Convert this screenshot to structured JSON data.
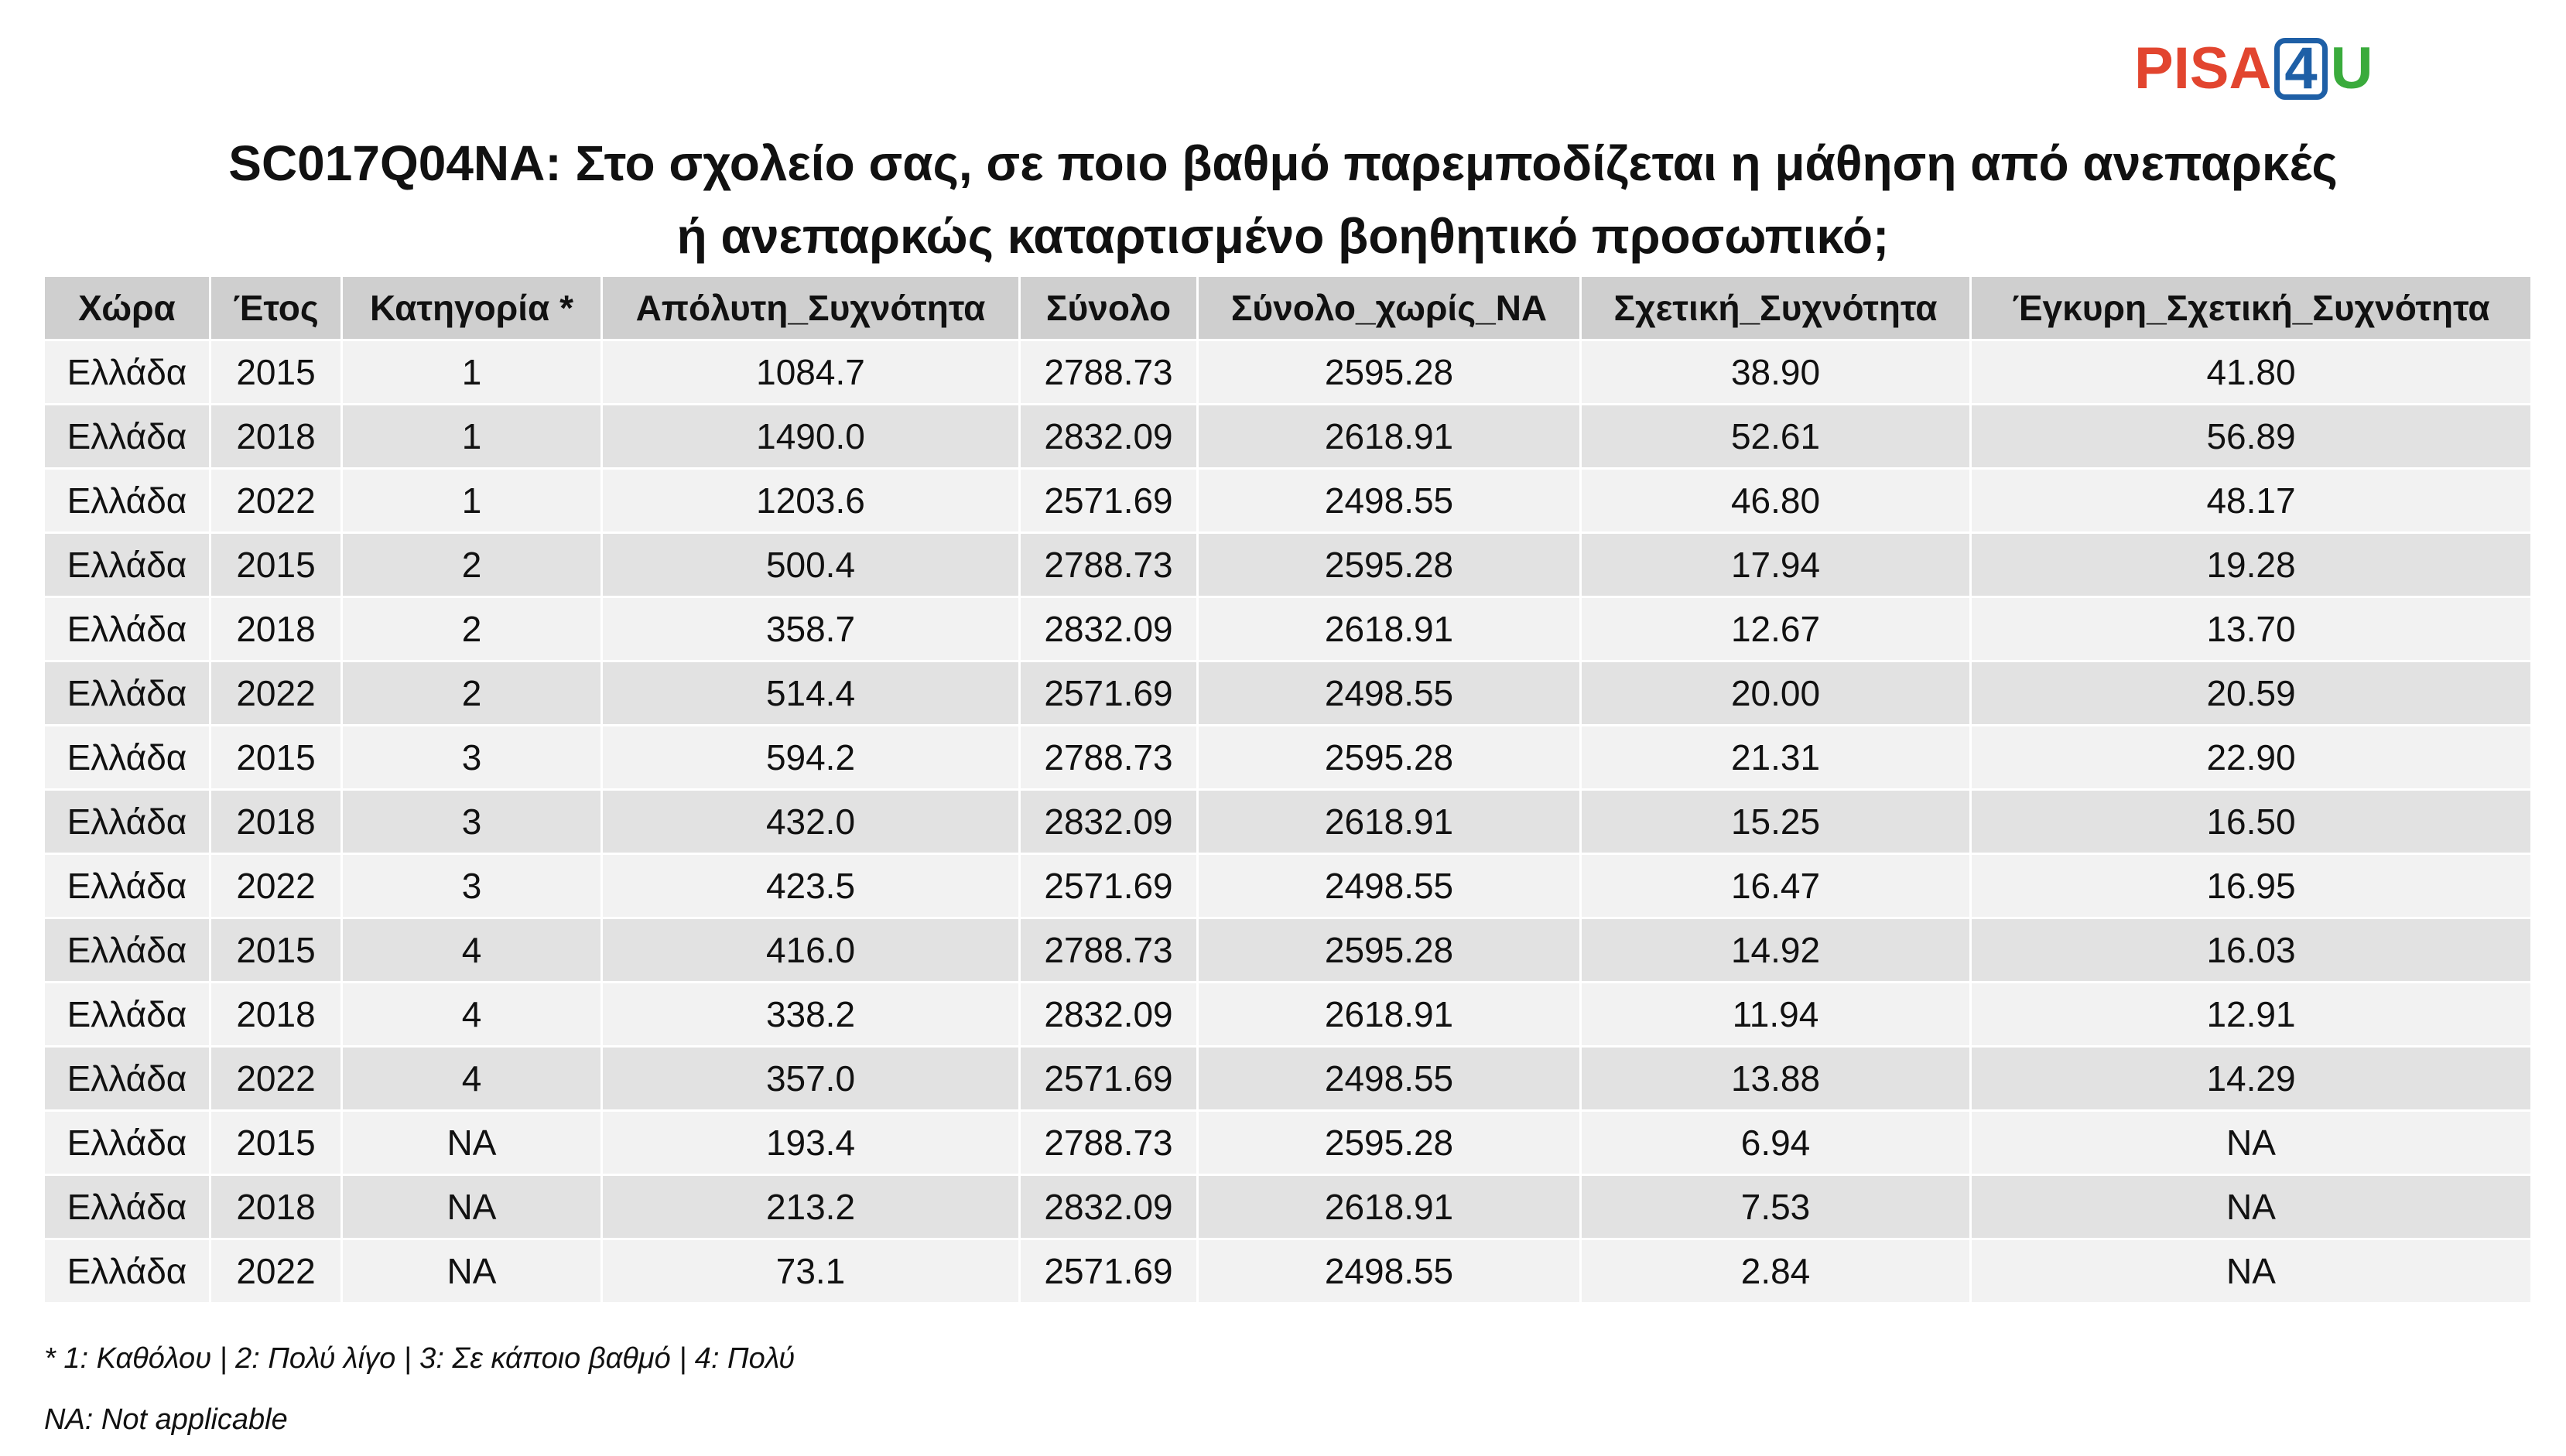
{
  "logo": [
    "PISA",
    "4",
    "U"
  ],
  "title": [
    "SC017Q04NA: Στο σχολείο σας, σε ποιο βαθμό παρεμποδίζεται η μάθηση από ανεπαρκές",
    "ή ανεπαρκώς καταρτισμένο βοηθητικό προσωπικό;"
  ],
  "table": {
    "header": [
      "Χώρα",
      "Έτος",
      "Κατηγορία *",
      "Απόλυτη_Συχνότητα",
      "Σύνολο",
      "Σύνολο_χωρίς_NA",
      "Σχετική_Συχνότητα",
      "Έγκυρη_Σχετική_Συχνότητα"
    ],
    "rows": [
      [
        "Ελλάδα",
        "2015",
        "1",
        "1084.7",
        "2788.73",
        "2595.28",
        "38.90",
        "41.80"
      ],
      [
        "Ελλάδα",
        "2018",
        "1",
        "1490.0",
        "2832.09",
        "2618.91",
        "52.61",
        "56.89"
      ],
      [
        "Ελλάδα",
        "2022",
        "1",
        "1203.6",
        "2571.69",
        "2498.55",
        "46.80",
        "48.17"
      ],
      [
        "Ελλάδα",
        "2015",
        "2",
        "500.4",
        "2788.73",
        "2595.28",
        "17.94",
        "19.28"
      ],
      [
        "Ελλάδα",
        "2018",
        "2",
        "358.7",
        "2832.09",
        "2618.91",
        "12.67",
        "13.70"
      ],
      [
        "Ελλάδα",
        "2022",
        "2",
        "514.4",
        "2571.69",
        "2498.55",
        "20.00",
        "20.59"
      ],
      [
        "Ελλάδα",
        "2015",
        "3",
        "594.2",
        "2788.73",
        "2595.28",
        "21.31",
        "22.90"
      ],
      [
        "Ελλάδα",
        "2018",
        "3",
        "432.0",
        "2832.09",
        "2618.91",
        "15.25",
        "16.50"
      ],
      [
        "Ελλάδα",
        "2022",
        "3",
        "423.5",
        "2571.69",
        "2498.55",
        "16.47",
        "16.95"
      ],
      [
        "Ελλάδα",
        "2015",
        "4",
        "416.0",
        "2788.73",
        "2595.28",
        "14.92",
        "16.03"
      ],
      [
        "Ελλάδα",
        "2018",
        "4",
        "338.2",
        "2832.09",
        "2618.91",
        "11.94",
        "12.91"
      ],
      [
        "Ελλάδα",
        "2022",
        "4",
        "357.0",
        "2571.69",
        "2498.55",
        "13.88",
        "14.29"
      ],
      [
        "Ελλάδα",
        "2015",
        "NA",
        "193.4",
        "2788.73",
        "2595.28",
        "6.94",
        "NA"
      ],
      [
        "Ελλάδα",
        "2018",
        "NA",
        "213.2",
        "2832.09",
        "2618.91",
        "7.53",
        "NA"
      ],
      [
        "Ελλάδα",
        "2022",
        "NA",
        "73.1",
        "2571.69",
        "2498.55",
        "2.84",
        "NA"
      ]
    ]
  },
  "notes": [
    "* 1: Καθόλου | 2: Πολύ λίγο | 3: Σε κάποιο βαθμό | 4: Πολύ",
    "NA: Not applicable"
  ]
}
